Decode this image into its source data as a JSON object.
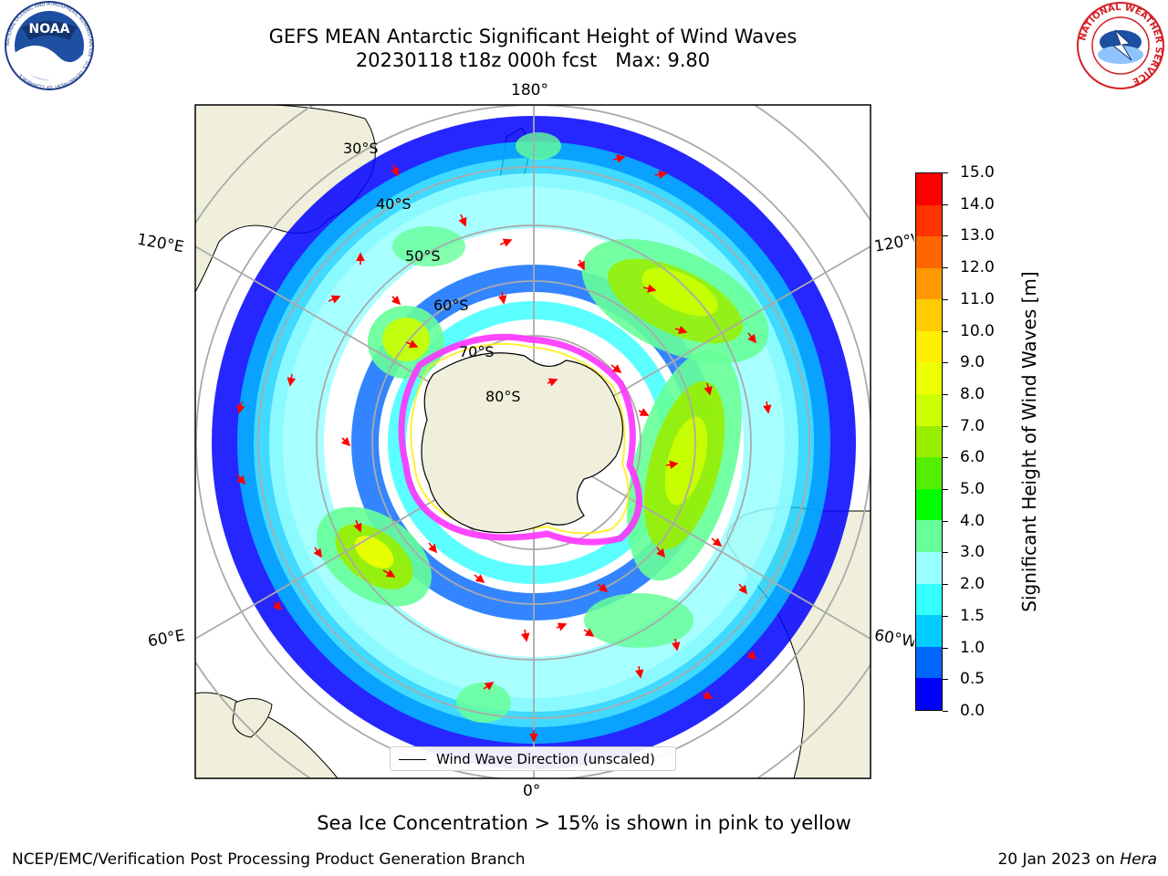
{
  "header": {
    "title": "GEFS MEAN Antarctic Significant Height of Wind Waves",
    "subtitle": "20230118 t18z 000h fcst   Max: 9.80"
  },
  "map": {
    "projection": "south-polar-stereographic",
    "lon_labels": {
      "top": "180°",
      "bottom": "0°",
      "upper_left": "120°E",
      "upper_right": "120°W",
      "lower_left": "60°E",
      "lower_right": "60°W"
    },
    "lat_labels": [
      "30°S",
      "40°S",
      "50°S",
      "60°S",
      "70°S",
      "80°S"
    ],
    "colors": {
      "land": "#efefdc",
      "ocean": "#ffffff",
      "grid": "#aaaaaa",
      "arrow": "#ff0000",
      "sea_ice": "#ff33ff"
    },
    "legend": {
      "label": "Wind Wave Direction (unscaled)"
    }
  },
  "colorbar": {
    "label": "Significant Height of Wind Waves [m]",
    "tick_labels": [
      "0.0",
      "0.5",
      "1.0",
      "1.5",
      "2.0",
      "3.0",
      "4.0",
      "5.0",
      "6.0",
      "7.0",
      "8.0",
      "9.0",
      "10.0",
      "11.0",
      "12.0",
      "13.0",
      "14.0",
      "15.0"
    ],
    "colors": [
      "#0000ff",
      "#0066ff",
      "#00ccff",
      "#33ffff",
      "#99ffff",
      "#66ff99",
      "#00ff00",
      "#55ee00",
      "#99ee00",
      "#ccff00",
      "#eeff00",
      "#ffee00",
      "#ffcc00",
      "#ff9900",
      "#ff6600",
      "#ff3300",
      "#ff0000"
    ]
  },
  "footer": {
    "sea_ice_note": "Sea Ice Concentration > 15% is shown in pink to yellow",
    "left": "NCEP/EMC/Verification Post Processing Product Generation Branch",
    "right_date": "20 Jan 2023 on ",
    "right_machine": "Hera"
  },
  "logos": {
    "noaa": "NOAA",
    "noaa_ring": "NATIONAL OCEANIC AND ATMOSPHERIC ADMINISTRATION · U.S. DEPARTMENT OF COMMERCE",
    "nws_ring": "NATIONAL WEATHER SERVICE"
  }
}
